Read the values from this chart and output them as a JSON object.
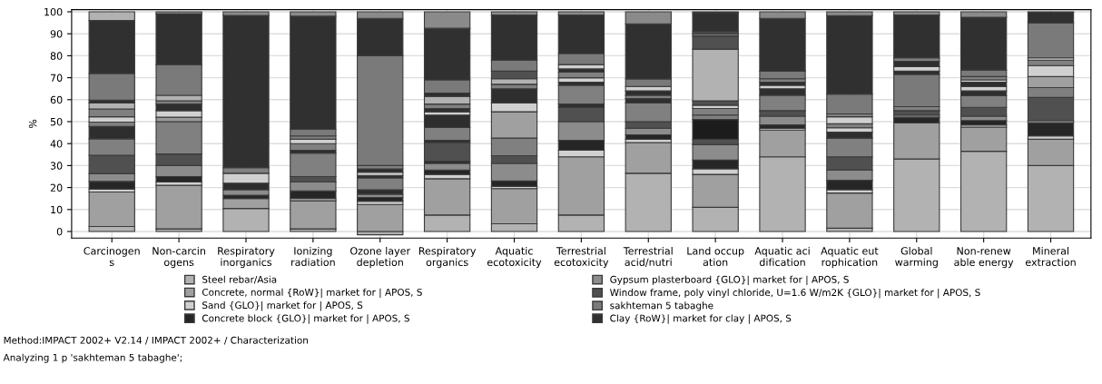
{
  "chart_data": {
    "type": "bar",
    "stacked": true,
    "ylabel": "%",
    "ylim": [
      -3,
      101
    ],
    "yticks": [
      0,
      10,
      20,
      30,
      40,
      50,
      60,
      70,
      80,
      90,
      100
    ],
    "grid": true,
    "legend": "bottom",
    "categories": [
      "Carcinogen\ns",
      "Non-carcin\nogens",
      "Respiratory\ninorganics",
      "Ionizing\nradiation",
      "Ozone layer\ndepletion",
      "Respiratory\norganics",
      "Aquatic\necotoxicity",
      "Terrestrial\necotoxicity",
      "Terrestrial\nacid/nutri",
      "Land occup\nation",
      "Aquatic aci\ndification",
      "Aquatic eut\nrophication",
      "Global\nwarming",
      "Non-renew\nable energy",
      "Mineral\nextraction"
    ],
    "series": [
      {
        "name": "Steel rebar/Asia",
        "color": "#b2b2b2",
        "values": [
          2.3,
          1.2,
          10.5,
          1.2,
          -1.5,
          7.5,
          3.5,
          7.5,
          26.5,
          11,
          34,
          1.5,
          33,
          36.5,
          30
        ]
      },
      {
        "name": "Concrete, normal {RoW}| market for | APOS, S",
        "color": "#a0a0a0",
        "values": [
          15.7,
          19.8,
          4.5,
          12.8,
          12.3,
          16.5,
          16.0,
          26.5,
          14.0,
          15,
          12.2,
          16.0,
          16.5,
          11.0,
          12
        ]
      },
      {
        "name": "Sand {GLO}| market for | APOS, S",
        "color": "#d0d0d0",
        "values": [
          1.3,
          1.5,
          null,
          1.0,
          1.5,
          2.0,
          1.0,
          3.0,
          1.5,
          2.5,
          0.8,
          1.5,
          null,
          1.0,
          1.5
        ]
      },
      {
        "name": "Concrete block {GLO}| market for | APOS, S",
        "color": "#262626",
        "values": [
          3.5,
          2.5,
          1.5,
          3.5,
          1.7,
          2.0,
          2.5,
          4.5,
          2.0,
          4.0,
          1.5,
          4.3,
          2.5,
          2.0,
          6.0
        ]
      },
      {
        "name": "Gypsum plasterboard {GLO}| market for | APOS, S",
        "color": "#8c8c8c",
        "values": [
          3.6,
          5.0,
          2.5,
          4.0,
          1.5,
          3.0,
          8.0,
          8.5,
          3.0,
          7.0,
          4.0,
          4.7,
          1.0,
          2.0,
          1.0
        ]
      },
      {
        "name": "Window frame, poly vinyl chloride, U=1.6 W/m2K {GLO}| market for | APOS, S",
        "color": "#505050",
        "values": [
          8.3,
          5.3,
          null,
          2.5,
          null,
          null,
          3.5,
          6.5,
          3.0,
          2.5,
          2.5,
          6.0,
          2.0,
          4.0,
          10.5
        ]
      },
      {
        "values": [
          7.5,
          14.7,
          3.0,
          10.7,
          2.0,
          1.0,
          8.0,
          1.5,
          8.5,
          9.0,
          7.0,
          8.5,
          1.8,
          5.3,
          4.5
        ],
        "colors": [
          "#808080",
          "#808080",
          "#2e2e2e",
          "#808080",
          "#2e2e2e",
          "#2e2e2e",
          "#808080",
          "#2e2e2e",
          "#808080",
          "#1c1c1c",
          "#808080",
          "#808080",
          "#808080",
          "#808080",
          "#808080"
        ]
      },
      {
        "values": [
          5.6,
          2.0,
          4.5,
          1.3,
          5.4,
          8.5,
          12.0,
          8.5,
          2.0,
          2.0,
          3.0,
          2.7,
          null,
          2.2,
          5.0
        ],
        "colors": [
          "#2e2e2e",
          "#999999",
          "#d0d0d0",
          "#2e2e2e",
          "#808080",
          "#505050",
          "#a0a0a0",
          "#808080",
          "#2e2e2e",
          "#808080",
          "#2e2e2e",
          "#2e2e2e",
          null,
          "#2e2e2e",
          "#a0a0a0"
        ]
      },
      {
        "values": [
          2.0,
          3.0,
          2.5,
          3.0,
          1.1,
          1.0,
          4.0,
          1.5,
          1.5,
          3.0,
          1.5,
          2.0,
          null,
          2.0,
          5.0
        ],
        "colors": [
          "#808080",
          "#d0d0d0",
          "#808080",
          "#808080",
          "#2e2e2e",
          "#2e2e2e",
          "#d0d0d0",
          "#2e2e2e",
          "#808080",
          "#808080",
          "#d0d0d0",
          "#d0d0d0",
          null,
          "#d0d0d0",
          "#d0d0d0"
        ]
      },
      {
        "values": [
          2.4,
          3.0,
          null,
          2.0,
          1.5,
          5.8,
          6.5,
          2.0,
          2.0,
          1.5,
          1.5,
          1.8,
          null,
          2.0,
          2.5
        ],
        "colors": [
          "#d0d0d0",
          "#2e2e2e",
          null,
          "#d0d0d0",
          "#d0d0d0",
          "#808080",
          "#2e2e2e",
          "#d0d0d0",
          "#2e2e2e",
          "#d0d0d0",
          "#2e2e2e",
          "#808080",
          null,
          "#2e2e2e",
          "#808080"
        ]
      },
      {
        "values": [
          3.6,
          1.5,
          null,
          1.5,
          1.5,
          5.7,
          2.0,
          2.5,
          2.0,
          2.0,
          1.5,
          3.2,
          null,
          1.0,
          1.0
        ],
        "colors": [
          "#808080",
          "#808080",
          null,
          "#808080",
          "#2e2e2e",
          "#2e2e2e",
          "#808080",
          "#808080",
          "#d0d0d0",
          "#505050",
          "#808080",
          "#d0d0d0",
          null,
          "#d0d0d0",
          "#d0d0d0"
        ]
      },
      {
        "values": [
          2.7,
          2.5,
          null,
          null,
          1.5,
          1.5,
          2.5,
          1.5,
          null,
          23.5,
          null,
          1.3,
          null,
          1.5,
          null
        ],
        "colors": [
          "#b2b2b2",
          "#b2b2b2",
          null,
          null,
          "#808080",
          "#d0d0d0",
          "#b2b2b2",
          "#2e2e2e",
          null,
          "#b2b2b2",
          null,
          "#808080",
          null,
          "#808080",
          null
        ]
      },
      {
        "values": [
          1.3,
          null,
          null,
          null,
          null,
          1.5,
          3.5,
          2.0,
          null,
          6.0,
          null,
          null,
          null,
          null,
          null
        ],
        "colors": [
          "#2e2e2e",
          null,
          null,
          null,
          null,
          "#2e2e2e",
          "#505050",
          "#d0d0d0",
          null,
          "#505050",
          null,
          null,
          null,
          null,
          null
        ]
      },
      {
        "color": "#808080",
        "values": [
          null,
          null,
          null,
          null,
          null,
          2.0,
          null,
          null,
          null,
          1.0,
          null,
          null,
          null,
          null,
          null
        ]
      },
      {
        "values": [
          null,
          null,
          null,
          null,
          null,
          3.5,
          null,
          null,
          null,
          1.0,
          null,
          null,
          null,
          null,
          null
        ],
        "colors": [
          null,
          null,
          null,
          null,
          null,
          "#b2b2b2",
          null,
          null,
          null,
          "#505050",
          null,
          null,
          null,
          null,
          null
        ]
      },
      {
        "color": "#2e2e2e",
        "values": [
          null,
          null,
          null,
          null,
          null,
          1.5,
          null,
          null,
          null,
          null,
          null,
          null,
          null,
          null,
          null
        ]
      },
      {
        "name": "sakhteman 5 tabaghe",
        "color": "#7a7a7a",
        "values": [
          12.1,
          14,
          null,
          3.0,
          50,
          6.0,
          5.0,
          5.0,
          3.4,
          null,
          3.5,
          9.0,
          14.7,
          3.0,
          16.0
        ]
      },
      {
        "color": "#2e2e2e",
        "values": [
          null,
          null,
          null,
          null,
          null,
          null,
          null,
          null,
          null,
          null,
          null,
          null,
          1.5,
          null,
          null
        ]
      },
      {
        "color": "#d0d0d0",
        "values": [
          null,
          null,
          null,
          null,
          null,
          null,
          null,
          null,
          null,
          null,
          null,
          null,
          2.0,
          null,
          null
        ]
      },
      {
        "color": "#2e2e2e",
        "values": [
          null,
          null,
          null,
          null,
          null,
          null,
          null,
          null,
          null,
          null,
          null,
          null,
          2.5,
          null,
          null
        ]
      },
      {
        "color": "#808080",
        "values": [
          null,
          null,
          null,
          null,
          null,
          null,
          null,
          null,
          null,
          null,
          null,
          null,
          1.5,
          null,
          null
        ]
      },
      {
        "name": "Clay {RoW}| market for clay | APOS, S",
        "color": "#303030",
        "values": [
          24.1,
          23,
          69.3,
          51.5,
          17,
          23.5,
          20.5,
          17.5,
          25.1,
          8.5,
          24,
          35.7,
          19.5,
          24,
          4.7
        ]
      },
      {
        "values": [
          4.0,
          1,
          1.7,
          2,
          3,
          7.5,
          1.5,
          1.5,
          5.5,
          0.5,
          3,
          1.8,
          1.5,
          2.5,
          0.3
        ],
        "colors": [
          "#b2b2b2",
          "#8a8a8a",
          "#8a8a8a",
          "#8a8a8a",
          "#8a8a8a",
          "#8a8a8a",
          "#8a8a8a",
          "#8a8a8a",
          "#8a8a8a",
          "#2e2e2e",
          "#8a8a8a",
          "#8a8a8a",
          "#8a8a8a",
          "#8a8a8a",
          "#8a8a8a"
        ]
      }
    ],
    "annotations": [
      "Method:IMPACT 2002+ V2.14 / IMPACT 2002+ / Characterization",
      "Analyzing 1 p 'sakhteman 5 tabaghe';"
    ]
  }
}
